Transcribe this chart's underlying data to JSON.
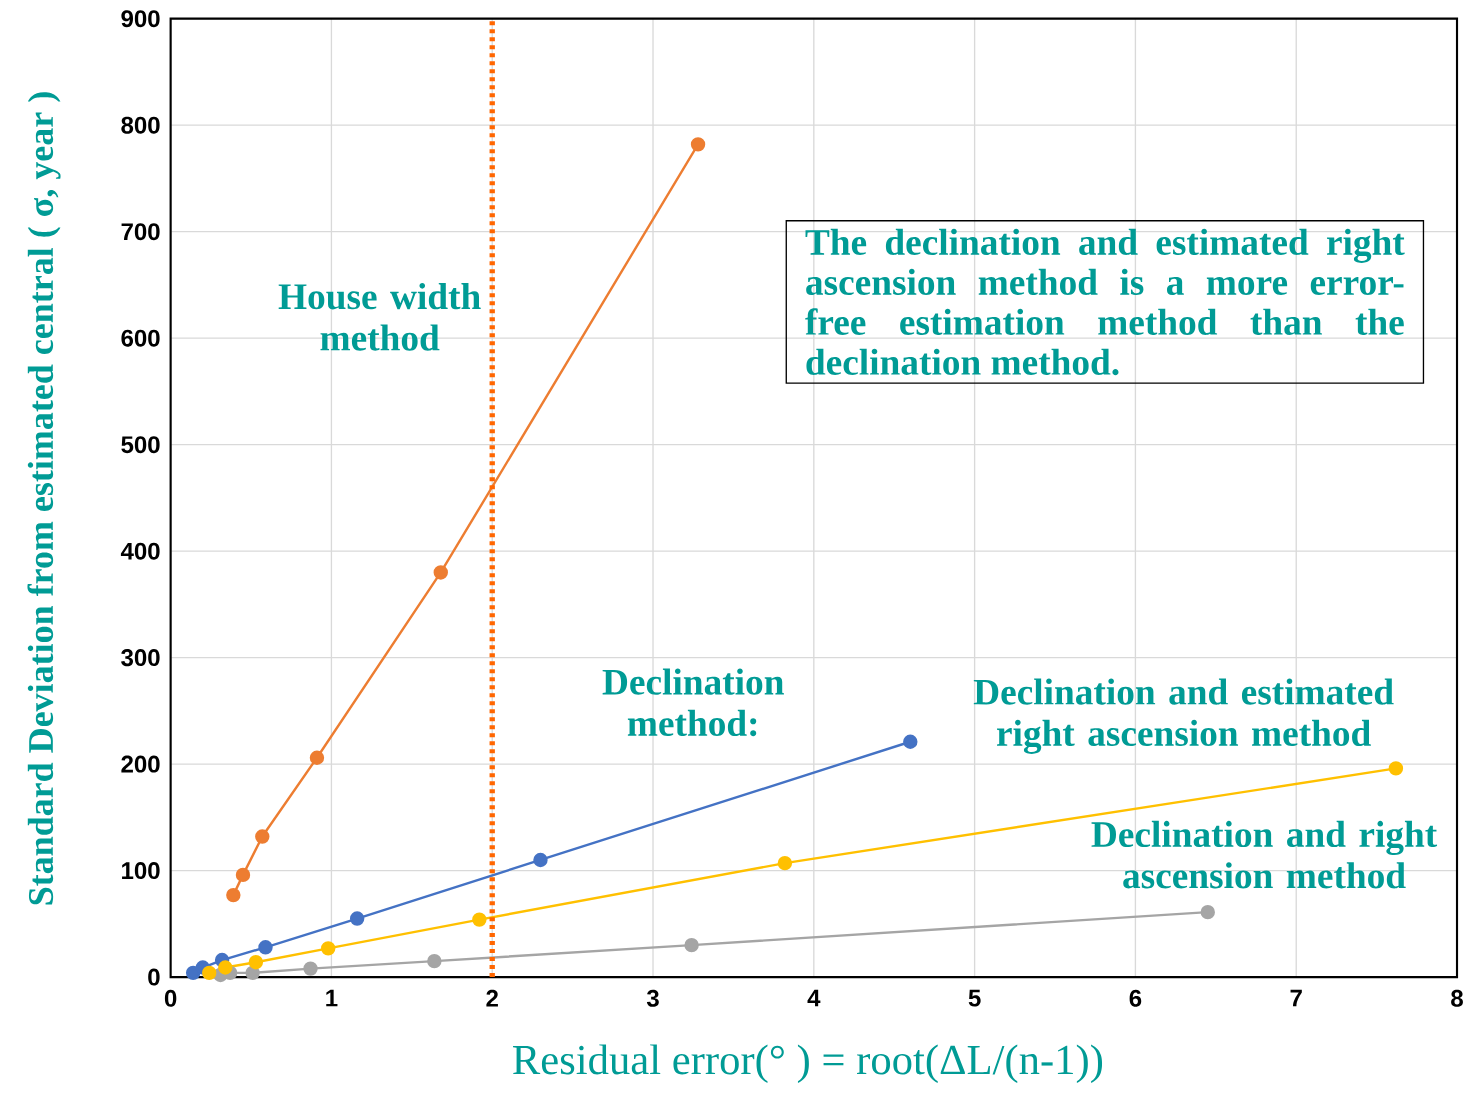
{
  "chart_data": {
    "type": "line",
    "xlabel": "Residual error(° ) = root(ΔL/(n-1))",
    "ylabel": "Standard Deviation from estimated central ( σ, year )",
    "xlim": [
      0,
      8
    ],
    "ylim": [
      0,
      900
    ],
    "xticks": [
      0,
      1,
      2,
      3,
      4,
      5,
      6,
      7,
      8
    ],
    "yticks": [
      0,
      100,
      200,
      300,
      400,
      500,
      600,
      700,
      800,
      900
    ],
    "grid": true,
    "legend": false,
    "marker": "circle",
    "line_style": "solid",
    "series": [
      {
        "name": "House width method",
        "color": "#ed7d31",
        "x": [
          0.39,
          0.45,
          0.57,
          0.91,
          1.68,
          3.28
        ],
        "values": [
          77,
          96,
          132,
          206,
          380,
          782
        ]
      },
      {
        "name": "Declination method:",
        "color": "#4472c4",
        "x": [
          0.14,
          0.2,
          0.32,
          0.59,
          1.16,
          2.3,
          4.6
        ],
        "values": [
          4,
          9,
          16,
          28,
          55,
          110,
          221
        ]
      },
      {
        "name": "Declination and estimated right ascension method",
        "color": "#ffc000",
        "x": [
          0.24,
          0.34,
          0.53,
          0.98,
          1.92,
          3.82,
          7.62
        ],
        "values": [
          4,
          9,
          14,
          27,
          54,
          107,
          196
        ]
      },
      {
        "name": "Declination and right ascension method",
        "color": "#a5a5a5",
        "x": [
          0.31,
          0.37,
          0.51,
          0.87,
          1.64,
          3.24,
          6.45
        ],
        "values": [
          2,
          4,
          4,
          8,
          15,
          30,
          61
        ]
      }
    ],
    "ref_lines": [
      {
        "axis": "x",
        "value": 2,
        "color": "#ff6600",
        "line_style": "dashed"
      }
    ],
    "annotations": [
      "The declination and estimated right ascension method is a more error-free estimation method than the declination method."
    ]
  }
}
